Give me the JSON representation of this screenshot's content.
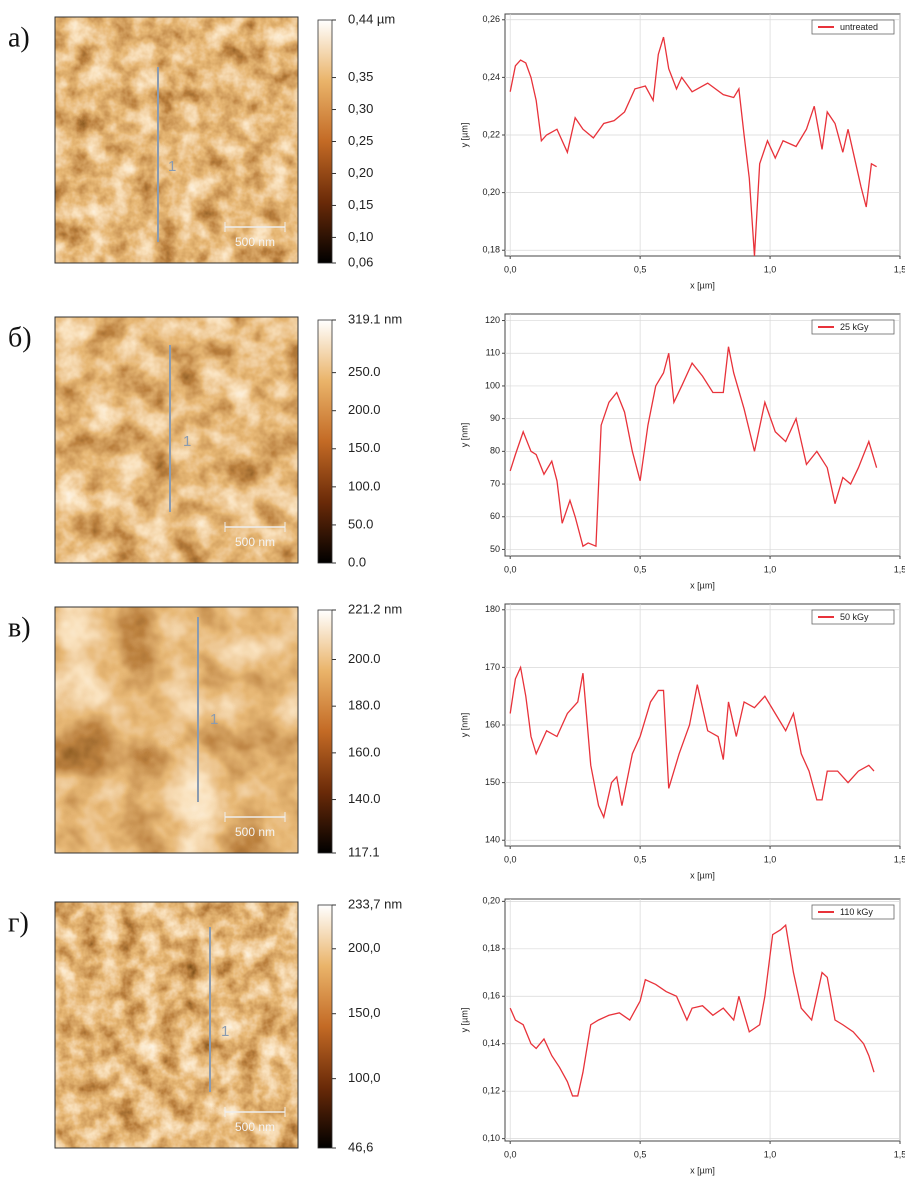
{
  "panels": [
    {
      "letter": "а)",
      "scale_bar": "500 nm",
      "profile_label": "1",
      "colorbar": {
        "clim": [
          0.06,
          0.44
        ],
        "ticks": [
          {
            "value": 0.44,
            "label": "0,44 µm"
          },
          {
            "value": 0.35,
            "label": "0,35"
          },
          {
            "value": 0.3,
            "label": "0,30"
          },
          {
            "value": 0.25,
            "label": "0,25"
          },
          {
            "value": 0.2,
            "label": "0,20"
          },
          {
            "value": 0.15,
            "label": "0,15"
          },
          {
            "value": 0.1,
            "label": "0,10"
          },
          {
            "value": 0.06,
            "label": "0,06"
          }
        ]
      }
    },
    {
      "letter": "б)",
      "scale_bar": "500 nm",
      "profile_label": "1",
      "colorbar": {
        "clim": [
          0,
          319.1
        ],
        "ticks": [
          {
            "value": 319.1,
            "label": "319.1 nm"
          },
          {
            "value": 250,
            "label": "250.0"
          },
          {
            "value": 200,
            "label": "200.0"
          },
          {
            "value": 150,
            "label": "150.0"
          },
          {
            "value": 100,
            "label": "100.0"
          },
          {
            "value": 50,
            "label": "50.0"
          },
          {
            "value": 0,
            "label": "0.0"
          }
        ]
      }
    },
    {
      "letter": "в)",
      "scale_bar": "500 nm",
      "profile_label": "1",
      "colorbar": {
        "clim": [
          117.1,
          221.2
        ],
        "ticks": [
          {
            "value": 221.2,
            "label": "221.2 nm"
          },
          {
            "value": 200,
            "label": "200.0"
          },
          {
            "value": 180,
            "label": "180.0"
          },
          {
            "value": 160,
            "label": "160.0"
          },
          {
            "value": 140,
            "label": "140.0"
          },
          {
            "value": 117.1,
            "label": "117.1"
          }
        ]
      }
    },
    {
      "letter": "г)",
      "scale_bar": "500 nm",
      "profile_label": "1",
      "colorbar": {
        "clim": [
          46.6,
          233.7
        ],
        "ticks": [
          {
            "value": 233.7,
            "label": "233,7 nm"
          },
          {
            "value": 200,
            "label": "200,0"
          },
          {
            "value": 150,
            "label": "150,0"
          },
          {
            "value": 100,
            "label": "100,0"
          },
          {
            "value": 46.6,
            "label": "46,6"
          }
        ]
      }
    }
  ],
  "chart_data": [
    {
      "type": "line",
      "xlabel": "x [µm]",
      "ylabel": "y [µm]",
      "xlim": [
        -0.02,
        1.5
      ],
      "ylim": [
        0.178,
        0.262
      ],
      "xticks": [
        {
          "value": 0,
          "label": "0,0"
        },
        {
          "value": 0.5,
          "label": "0,5"
        },
        {
          "value": 1,
          "label": "1,0"
        },
        {
          "value": 1.5,
          "label": "1,5"
        }
      ],
      "yticks": [
        {
          "value": 0.18,
          "label": "0,18"
        },
        {
          "value": 0.2,
          "label": "0,20"
        },
        {
          "value": 0.22,
          "label": "0,22"
        },
        {
          "value": 0.24,
          "label": "0,24"
        },
        {
          "value": 0.26,
          "label": "0,26"
        }
      ],
      "grid": true,
      "legend": "upper right",
      "x": [
        0,
        0.02,
        0.04,
        0.06,
        0.08,
        0.1,
        0.12,
        0.14,
        0.18,
        0.22,
        0.25,
        0.28,
        0.32,
        0.36,
        0.4,
        0.44,
        0.48,
        0.52,
        0.55,
        0.57,
        0.59,
        0.61,
        0.64,
        0.66,
        0.7,
        0.76,
        0.82,
        0.86,
        0.88,
        0.9,
        0.92,
        0.94,
        0.96,
        0.99,
        1.02,
        1.05,
        1.1,
        1.14,
        1.17,
        1.2,
        1.22,
        1.25,
        1.28,
        1.3,
        1.33,
        1.35,
        1.37,
        1.39,
        1.41
      ],
      "series": [
        {
          "name": "untreated",
          "color": "#e8323a",
          "values": [
            0.235,
            0.244,
            0.246,
            0.245,
            0.24,
            0.232,
            0.218,
            0.22,
            0.222,
            0.214,
            0.226,
            0.222,
            0.219,
            0.224,
            0.225,
            0.228,
            0.236,
            0.237,
            0.232,
            0.248,
            0.254,
            0.243,
            0.236,
            0.24,
            0.235,
            0.238,
            0.234,
            0.233,
            0.236,
            0.22,
            0.205,
            0.178,
            0.21,
            0.218,
            0.212,
            0.218,
            0.216,
            0.222,
            0.23,
            0.215,
            0.228,
            0.224,
            0.214,
            0.222,
            0.21,
            0.202,
            0.195,
            0.21,
            0.209
          ]
        }
      ]
    },
    {
      "type": "line",
      "xlabel": "x [µm]",
      "ylabel": "y [nm]",
      "xlim": [
        -0.02,
        1.5
      ],
      "ylim": [
        48,
        122
      ],
      "xticks": [
        {
          "value": 0,
          "label": "0,0"
        },
        {
          "value": 0.5,
          "label": "0,5"
        },
        {
          "value": 1,
          "label": "1,0"
        },
        {
          "value": 1.5,
          "label": "1,5"
        }
      ],
      "yticks": [
        50,
        60,
        70,
        80,
        90,
        100,
        110,
        120
      ],
      "grid": true,
      "legend": "upper right",
      "x": [
        0,
        0.02,
        0.05,
        0.08,
        0.1,
        0.13,
        0.16,
        0.18,
        0.2,
        0.23,
        0.25,
        0.28,
        0.3,
        0.33,
        0.35,
        0.38,
        0.41,
        0.44,
        0.47,
        0.5,
        0.53,
        0.56,
        0.59,
        0.61,
        0.63,
        0.66,
        0.7,
        0.74,
        0.78,
        0.82,
        0.84,
        0.86,
        0.9,
        0.94,
        0.98,
        1.02,
        1.06,
        1.1,
        1.14,
        1.18,
        1.22,
        1.25,
        1.28,
        1.31,
        1.34,
        1.38,
        1.41
      ],
      "series": [
        {
          "name": "25 kGy",
          "color": "#e8323a",
          "values": [
            74,
            79,
            86,
            80,
            79,
            73,
            77,
            71,
            58,
            65,
            60,
            51,
            52,
            51,
            88,
            95,
            98,
            92,
            80,
            71,
            88,
            100,
            104,
            110,
            95,
            100,
            107,
            103,
            98,
            98,
            112,
            104,
            93,
            80,
            95,
            86,
            83,
            90,
            76,
            80,
            75,
            64,
            72,
            70,
            75,
            83,
            75
          ]
        }
      ]
    },
    {
      "type": "line",
      "xlabel": "x [µm]",
      "ylabel": "y [nm]",
      "xlim": [
        -0.02,
        1.5
      ],
      "ylim": [
        139,
        181
      ],
      "xticks": [
        {
          "value": 0,
          "label": "0,0"
        },
        {
          "value": 0.5,
          "label": "0,5"
        },
        {
          "value": 1,
          "label": "1,0"
        },
        {
          "value": 1.5,
          "label": "1,5"
        }
      ],
      "yticks": [
        140,
        150,
        160,
        170,
        180
      ],
      "grid": true,
      "legend": "upper right",
      "x": [
        0,
        0.02,
        0.04,
        0.06,
        0.08,
        0.1,
        0.14,
        0.18,
        0.22,
        0.26,
        0.28,
        0.31,
        0.34,
        0.36,
        0.39,
        0.41,
        0.43,
        0.47,
        0.5,
        0.54,
        0.57,
        0.59,
        0.61,
        0.65,
        0.69,
        0.72,
        0.76,
        0.8,
        0.82,
        0.84,
        0.87,
        0.9,
        0.94,
        0.98,
        1.02,
        1.06,
        1.09,
        1.12,
        1.15,
        1.18,
        1.2,
        1.22,
        1.26,
        1.3,
        1.34,
        1.38,
        1.4
      ],
      "series": [
        {
          "name": "50 kGy",
          "color": "#e8323a",
          "values": [
            162,
            168,
            170,
            165,
            158,
            155,
            159,
            158,
            162,
            164,
            169,
            153,
            146,
            144,
            150,
            151,
            146,
            155,
            158,
            164,
            166,
            166,
            149,
            155,
            160,
            167,
            159,
            158,
            154,
            164,
            158,
            164,
            163,
            165,
            162,
            159,
            162,
            155,
            152,
            147,
            147,
            152,
            152,
            150,
            152,
            153,
            152
          ]
        }
      ]
    },
    {
      "type": "line",
      "xlabel": "x [µm]",
      "ylabel": "y [µm]",
      "xlim": [
        -0.02,
        1.5
      ],
      "ylim": [
        0.099,
        0.201
      ],
      "xticks": [
        {
          "value": 0,
          "label": "0,0"
        },
        {
          "value": 0.5,
          "label": "0,5"
        },
        {
          "value": 1,
          "label": "1,0"
        },
        {
          "value": 1.5,
          "label": "1,5"
        }
      ],
      "yticks": [
        {
          "value": 0.1,
          "label": "0,10"
        },
        {
          "value": 0.12,
          "label": "0,12"
        },
        {
          "value": 0.14,
          "label": "0,14"
        },
        {
          "value": 0.16,
          "label": "0,16"
        },
        {
          "value": 0.18,
          "label": "0,18"
        },
        {
          "value": 0.2,
          "label": "0,20"
        }
      ],
      "grid": true,
      "legend": "upper right",
      "x": [
        0,
        0.02,
        0.05,
        0.08,
        0.1,
        0.13,
        0.16,
        0.19,
        0.22,
        0.24,
        0.26,
        0.28,
        0.31,
        0.34,
        0.38,
        0.42,
        0.46,
        0.5,
        0.52,
        0.56,
        0.6,
        0.64,
        0.68,
        0.7,
        0.74,
        0.78,
        0.82,
        0.86,
        0.88,
        0.92,
        0.96,
        0.98,
        1.01,
        1.04,
        1.06,
        1.09,
        1.12,
        1.16,
        1.2,
        1.22,
        1.25,
        1.28,
        1.32,
        1.36,
        1.38,
        1.4
      ],
      "series": [
        {
          "name": "110 kGy",
          "color": "#e8323a",
          "values": [
            0.155,
            0.15,
            0.148,
            0.14,
            0.138,
            0.142,
            0.135,
            0.13,
            0.124,
            0.118,
            0.118,
            0.128,
            0.148,
            0.15,
            0.152,
            0.153,
            0.15,
            0.158,
            0.167,
            0.165,
            0.162,
            0.16,
            0.15,
            0.155,
            0.156,
            0.152,
            0.155,
            0.15,
            0.16,
            0.145,
            0.148,
            0.16,
            0.186,
            0.188,
            0.19,
            0.17,
            0.155,
            0.15,
            0.17,
            0.168,
            0.15,
            0.148,
            0.145,
            0.14,
            0.135,
            0.128
          ]
        }
      ]
    }
  ]
}
